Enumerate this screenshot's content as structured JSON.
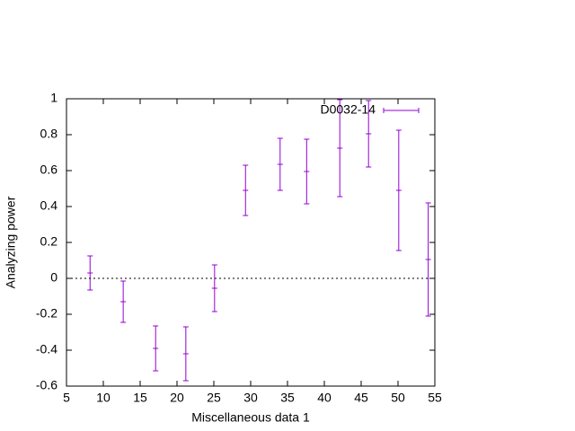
{
  "chart_data": {
    "type": "errorbar",
    "xlabel": "Miscellaneous data 1",
    "ylabel": "Analyzing power",
    "xlim": [
      5,
      55
    ],
    "xticks": [
      5,
      10,
      15,
      20,
      25,
      30,
      35,
      40,
      45,
      50,
      55
    ],
    "ylim": [
      -0.6,
      1
    ],
    "yticks": [
      -0.6,
      -0.4,
      -0.2,
      0,
      0.2,
      0.4,
      0.6,
      0.8,
      1
    ],
    "zero_axis": true,
    "legend": "top-right",
    "series": [
      {
        "name": "D0032-14",
        "color": "#9400d3",
        "x": [
          8.2,
          12.7,
          17.1,
          21.2,
          25.1,
          29.3,
          34.0,
          37.6,
          42.1,
          46.0,
          50.1,
          54.1
        ],
        "values": [
          0.03,
          -0.13,
          -0.39,
          -0.42,
          -0.055,
          0.49,
          0.635,
          0.595,
          0.725,
          0.805,
          0.49,
          0.105
        ],
        "errors": [
          0.095,
          0.115,
          0.125,
          0.15,
          0.13,
          0.14,
          0.145,
          0.18,
          0.27,
          0.185,
          0.335,
          0.315
        ]
      }
    ]
  }
}
